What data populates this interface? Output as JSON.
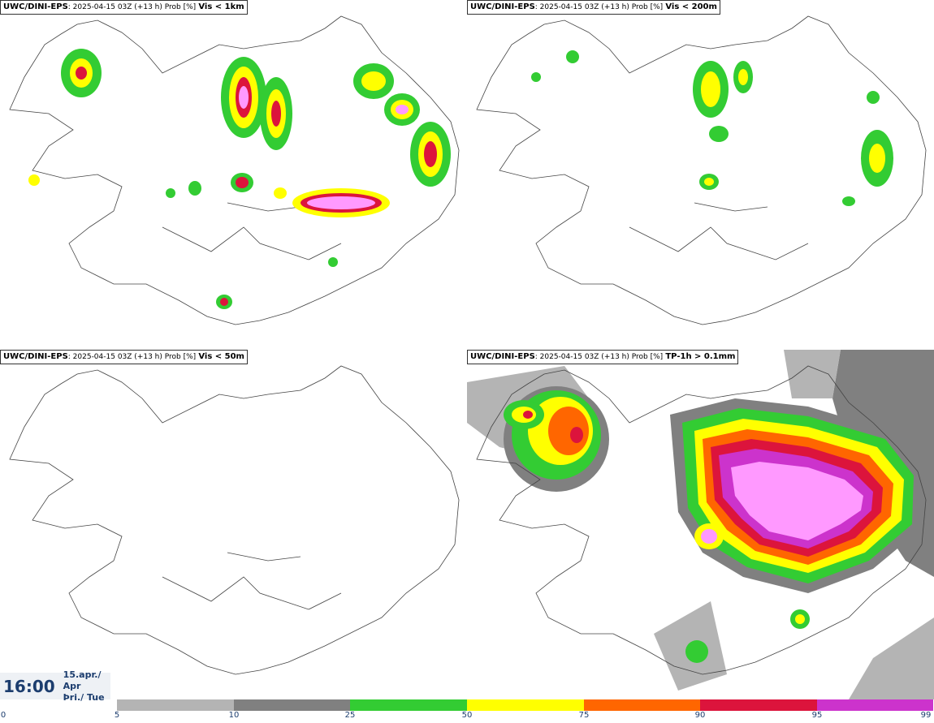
{
  "panels": [
    {
      "model": "UWC/DINI-EPS",
      "meta": ": 2025-04-15 03Z (+13 h) Prob [%]",
      "field": "Vis < 1km"
    },
    {
      "model": "UWC/DINI-EPS",
      "meta": ": 2025-04-15 03Z (+13 h) Prob [%]",
      "field": "Vis < 200m"
    },
    {
      "model": "UWC/DINI-EPS",
      "meta": ": 2025-04-15 03Z (+13 h) Prob [%]",
      "field": "Vis < 50m"
    },
    {
      "model": "UWC/DINI-EPS",
      "meta": ": 2025-04-15 03Z (+13 h) Prob [%]",
      "field": "TP-1h > 0.1mm"
    }
  ],
  "valid_time": {
    "time": "16:00",
    "date_line": "15.apr./ Apr",
    "day_line": "Þri./ Tue"
  },
  "legend": {
    "ticks": [
      "0",
      "5",
      "10",
      "25",
      "50",
      "75",
      "90",
      "95",
      "99"
    ],
    "colors": {
      "5-10": "#b4b4b4",
      "10-25": "#808080",
      "25-50": "#33cc33",
      "50-75": "#ffff00",
      "75-90": "#ff6600",
      "90-95": "#dc143c",
      "95-99": "#cc33cc",
      "99+": "#ff99ff"
    }
  }
}
